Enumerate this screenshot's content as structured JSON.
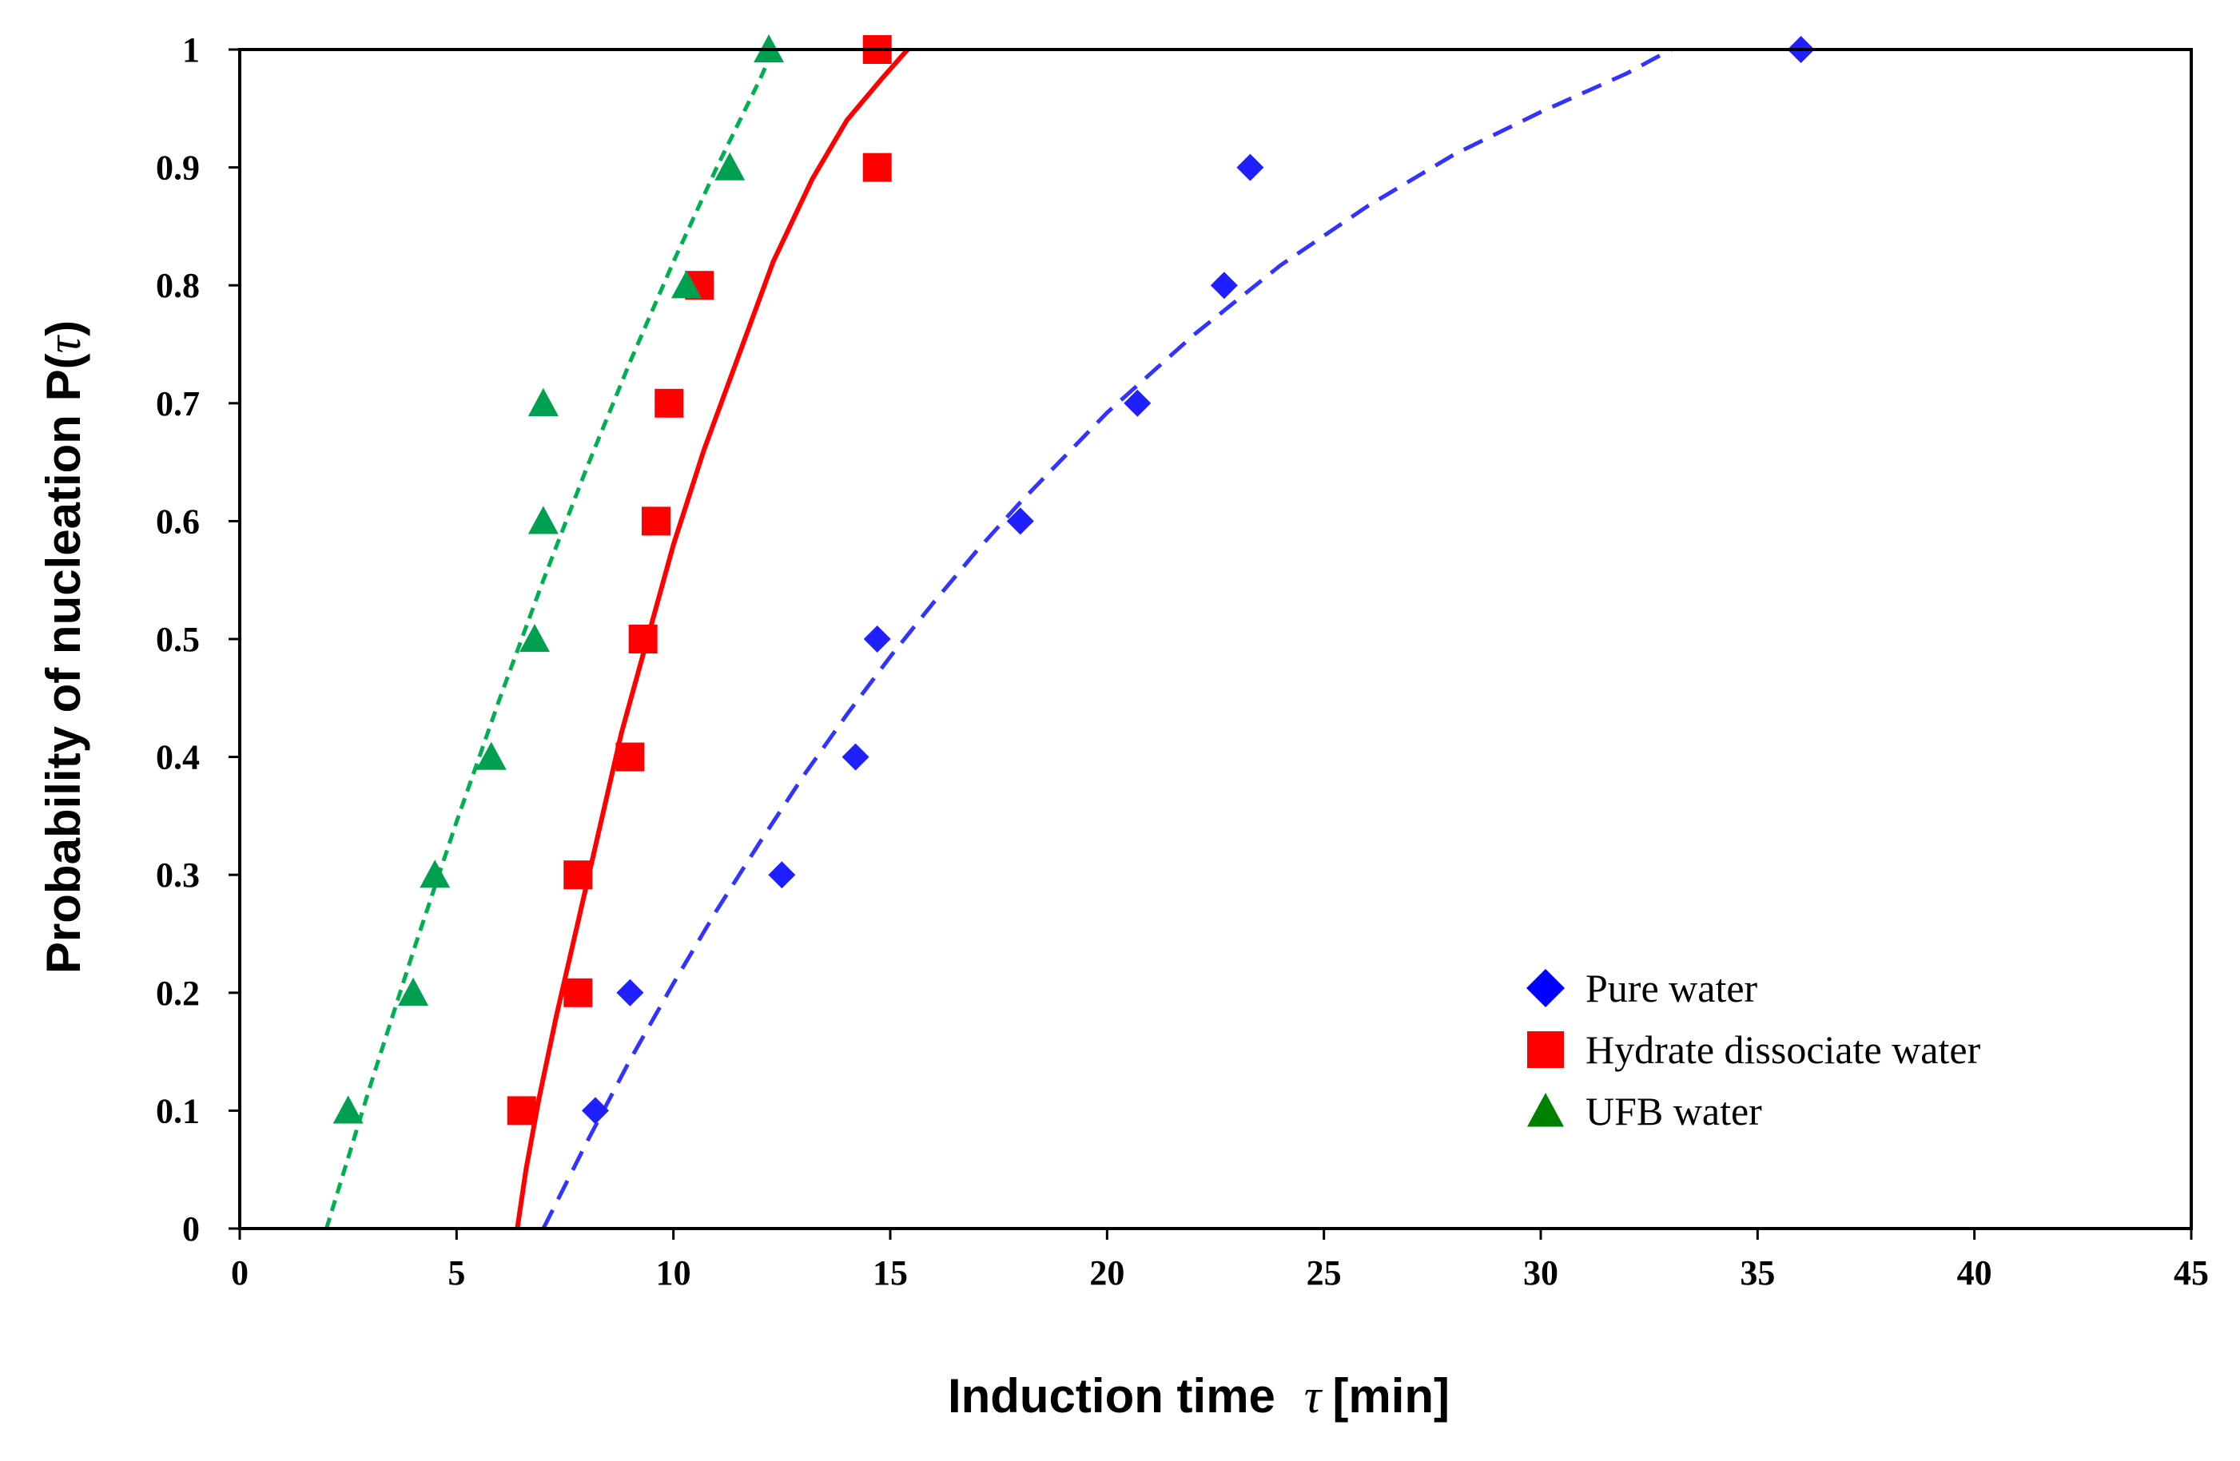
{
  "chart_data": {
    "type": "scatter",
    "title": "",
    "xlabel": "Induction time",
    "xlabel_symbol": "τ",
    "xlabel_unit": "[min]",
    "ylabel": "Probability of nucleation P(",
    "ylabel_symbol": "τ",
    "ylabel_close": ")",
    "xlim": [
      0,
      45
    ],
    "ylim": [
      0,
      1
    ],
    "x_ticks": [
      0,
      5,
      10,
      15,
      20,
      25,
      30,
      35,
      40,
      45
    ],
    "x_tick_labels": [
      "0",
      "5",
      "10",
      "15",
      "20",
      "25",
      "30",
      "35",
      "40",
      "45"
    ],
    "y_ticks": [
      0,
      0.1,
      0.2,
      0.3,
      0.4,
      0.5,
      0.6,
      0.7,
      0.8,
      0.9,
      1
    ],
    "y_tick_labels": [
      "0",
      "0.1",
      "0.2",
      "0.3",
      "0.4",
      "0.5",
      "0.6",
      "0.7",
      "0.8",
      "0.9",
      "1"
    ],
    "grid": false,
    "legend_position": "bottom-right",
    "series": [
      {
        "name": "Pure water",
        "marker": "diamond",
        "color": "#1f1fff",
        "legend_color": "#0000ff",
        "x": [
          8.2,
          9.0,
          12.5,
          14.2,
          14.7,
          18.0,
          20.7,
          22.7,
          23.3,
          36.0
        ],
        "y": [
          0.1,
          0.2,
          0.3,
          0.4,
          0.5,
          0.6,
          0.7,
          0.8,
          0.9,
          1.0
        ],
        "fit": {
          "style": "dashed",
          "color": "#3333ff",
          "x": [
            7.0,
            8.0,
            9.0,
            10.0,
            11.0,
            12.0,
            13.0,
            14.0,
            15.0,
            16.0,
            17.0,
            18.0,
            20.0,
            22.0,
            24.0,
            26.0,
            28.0,
            30.0,
            32.0,
            33.0
          ],
          "y": [
            0.0,
            0.073,
            0.143,
            0.208,
            0.27,
            0.328,
            0.384,
            0.436,
            0.485,
            0.531,
            0.575,
            0.616,
            0.692,
            0.758,
            0.817,
            0.867,
            0.911,
            0.947,
            0.98,
            1.0
          ]
        }
      },
      {
        "name": "Hydrate dissociate water",
        "marker": "square",
        "color": "#ff0000",
        "legend_color": "#ff0000",
        "x": [
          6.5,
          7.8,
          7.8,
          9.0,
          9.3,
          9.6,
          9.9,
          10.6,
          14.7,
          14.7
        ],
        "y": [
          0.1,
          0.2,
          0.3,
          0.4,
          0.5,
          0.6,
          0.7,
          0.8,
          0.9,
          1.0
        ],
        "fit": {
          "style": "solid",
          "color": "#ff0000",
          "x": [
            6.4,
            6.6,
            6.9,
            7.3,
            7.8,
            8.3,
            8.8,
            9.4,
            10.0,
            10.7,
            11.5,
            12.3,
            13.2,
            14.0,
            14.8,
            15.4
          ],
          "y": [
            0.0,
            0.05,
            0.11,
            0.18,
            0.26,
            0.34,
            0.42,
            0.5,
            0.58,
            0.66,
            0.74,
            0.82,
            0.89,
            0.94,
            0.975,
            1.0
          ]
        }
      },
      {
        "name": "UFB water",
        "marker": "triangle",
        "color": "#00a050",
        "legend_color": "#008000",
        "x": [
          2.5,
          4.0,
          4.5,
          5.8,
          6.8,
          7.0,
          7.0,
          10.3,
          11.3,
          12.2
        ],
        "y": [
          0.1,
          0.2,
          0.3,
          0.4,
          0.5,
          0.6,
          0.7,
          0.8,
          0.9,
          1.0
        ],
        "fit": {
          "style": "dashed",
          "color": "#00b050",
          "x": [
            2.0,
            3.0,
            4.0,
            5.0,
            6.0,
            7.0,
            8.0,
            9.0,
            10.0,
            11.0,
            12.0,
            12.3
          ],
          "y": [
            0.0,
            0.12,
            0.235,
            0.345,
            0.45,
            0.55,
            0.645,
            0.735,
            0.82,
            0.9,
            0.975,
            1.0
          ]
        }
      }
    ]
  }
}
